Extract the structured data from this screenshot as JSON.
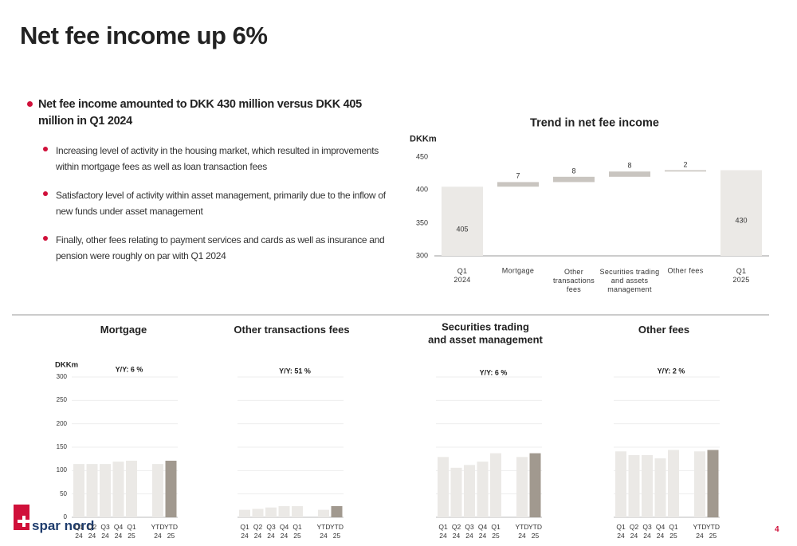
{
  "title": "Net fee income up 6%",
  "bullets": [
    {
      "text": "Net fee income amounted to DKK 430 million versus DKK 405 million in Q1 2024",
      "sub": [
        "Increasing level of activity in the housing market, which resulted in improvements within mortgage fees as well as loan transaction fees",
        "Satisfactory level of activity within asset management, primarily due to the inflow of new funds under asset management",
        "Finally, other fees relating to payment services and cards as well as insurance and pension were roughly on par with Q1 2024"
      ]
    }
  ],
  "chart_data": [
    {
      "type": "waterfall",
      "title": "Trend in net fee income",
      "ylabel": "DKKm",
      "categories": [
        "Q1\n2024",
        "Mortgage",
        "Other\ntransactions\nfees",
        "Securities trading\nand assets\nmanagement",
        "Other fees",
        "Q1\n2025"
      ],
      "values": [
        405,
        7,
        8,
        8,
        2,
        430
      ],
      "totals": [
        true,
        false,
        false,
        false,
        false,
        true
      ],
      "total_color": "#ebe9e6",
      "delta_color": "#c9c5c0",
      "ylim": [
        300,
        450
      ],
      "yticks": [
        300,
        350,
        400,
        450
      ]
    },
    {
      "type": "bar",
      "title": "Mortgage",
      "ylabel": "DKKm",
      "annotation": "Y/Y: 6 %",
      "categories": [
        "Q1\n24",
        "Q2\n24",
        "Q3\n24",
        "Q4\n24",
        "Q1\n25",
        null,
        "YTD\n24",
        "YTD\n25"
      ],
      "values": [
        114,
        114,
        114,
        119,
        121,
        null,
        114,
        121
      ],
      "colors": [
        "#ebe9e6",
        "#ebe9e6",
        "#ebe9e6",
        "#ebe9e6",
        "#ebe9e6",
        null,
        "#ebe9e6",
        "#a1998f"
      ],
      "ylim": [
        0,
        300
      ],
      "yticks": [
        0,
        50,
        100,
        150,
        200,
        250,
        300
      ],
      "show_tick_labels": true,
      "grid": true
    },
    {
      "type": "bar",
      "title": "Other transactions fees",
      "annotation": "Y/Y: 51 %",
      "categories": [
        "Q1\n24",
        "Q2\n24",
        "Q3\n24",
        "Q4\n24",
        "Q1\n25",
        null,
        "YTD\n24",
        "YTD\n25"
      ],
      "values": [
        16,
        18,
        21,
        24,
        24,
        null,
        16,
        24
      ],
      "colors": [
        "#ebe9e6",
        "#ebe9e6",
        "#ebe9e6",
        "#ebe9e6",
        "#ebe9e6",
        null,
        "#ebe9e6",
        "#a1998f"
      ],
      "ylim": [
        0,
        300
      ],
      "yticks": [
        0,
        50,
        100,
        150,
        200,
        250,
        300
      ],
      "show_tick_labels": false,
      "grid": true
    },
    {
      "type": "bar",
      "title": "Securities trading\nand asset management",
      "annotation": "Y/Y: 6 %",
      "categories": [
        "Q1\n24",
        "Q2\n24",
        "Q3\n24",
        "Q4\n24",
        "Q1\n25",
        null,
        "YTD\n24",
        "YTD\n25"
      ],
      "values": [
        129,
        106,
        112,
        119,
        137,
        null,
        129,
        137
      ],
      "colors": [
        "#ebe9e6",
        "#ebe9e6",
        "#ebe9e6",
        "#ebe9e6",
        "#ebe9e6",
        null,
        "#ebe9e6",
        "#a1998f"
      ],
      "ylim": [
        0,
        300
      ],
      "yticks": [
        0,
        50,
        100,
        150,
        200,
        250,
        300
      ],
      "show_tick_labels": false,
      "grid": true
    },
    {
      "type": "bar",
      "title": "Other fees",
      "annotation": "Y/Y: 2 %",
      "categories": [
        "Q1\n24",
        "Q2\n24",
        "Q3\n24",
        "Q4\n24",
        "Q1\n25",
        null,
        "YTD\n24",
        "YTD\n25"
      ],
      "values": [
        141,
        133,
        133,
        126,
        144,
        null,
        141,
        144
      ],
      "colors": [
        "#ebe9e6",
        "#ebe9e6",
        "#ebe9e6",
        "#ebe9e6",
        "#ebe9e6",
        null,
        "#ebe9e6",
        "#a1998f"
      ],
      "ylim": [
        0,
        300
      ],
      "yticks": [
        0,
        50,
        100,
        150,
        200,
        250,
        300
      ],
      "show_tick_labels": false,
      "grid": true
    }
  ],
  "logo": "spar nord",
  "page_number": "4"
}
